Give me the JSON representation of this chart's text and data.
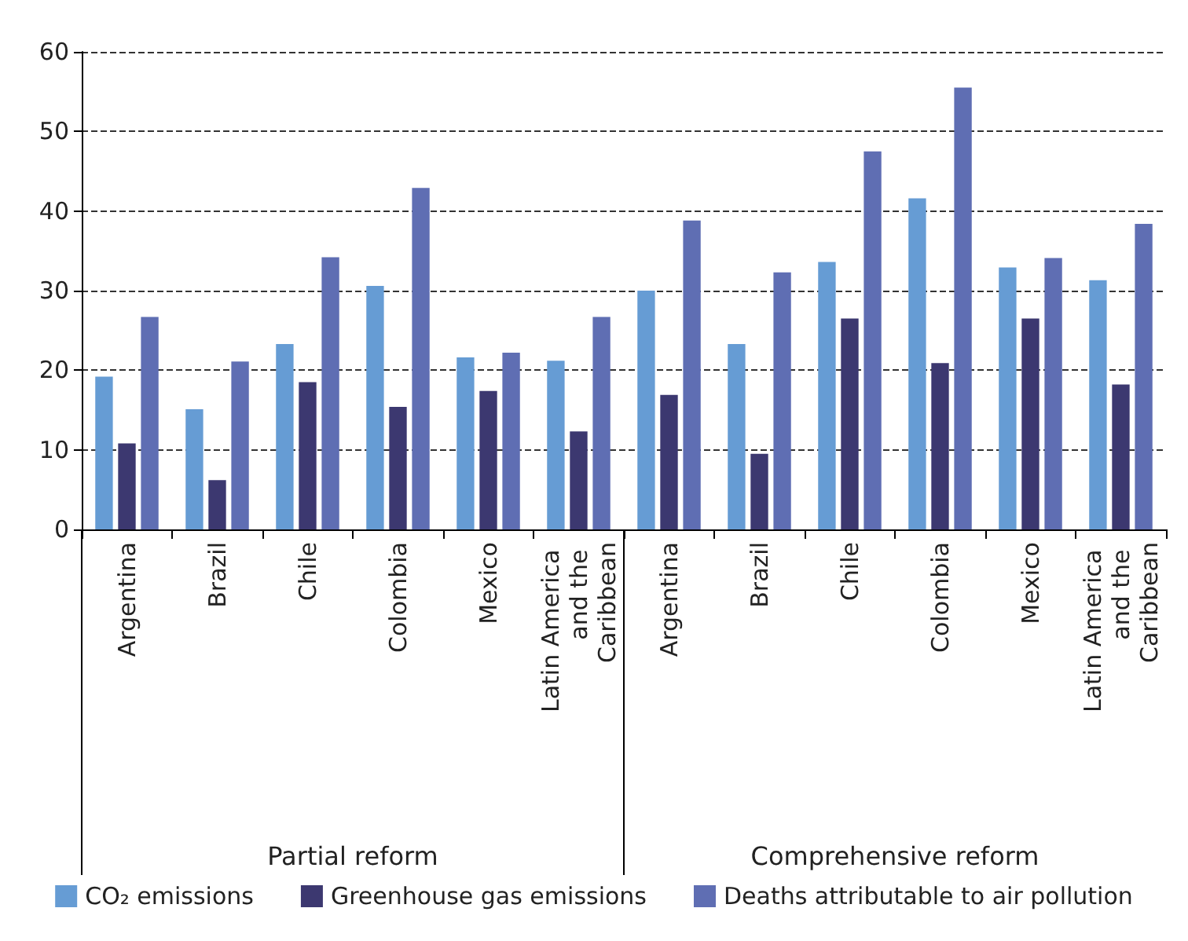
{
  "chart_data": {
    "type": "bar",
    "categories": [
      "Argentina",
      "Brazil",
      "Chile",
      "Colombia",
      "Mexico",
      "Latin America and the Caribbean",
      "Argentina",
      "Brazil",
      "Chile",
      "Colombia",
      "Mexico",
      "Latin America and the Caribbean"
    ],
    "series": [
      {
        "name": "CO₂ emissions",
        "color": "#669cd4",
        "values": [
          19.2,
          15.1,
          23.3,
          30.6,
          21.6,
          21.2,
          30.0,
          23.3,
          33.6,
          41.6,
          32.9,
          31.3
        ]
      },
      {
        "name": "Greenhouse gas emissions",
        "color": "#3c3870",
        "values": [
          10.8,
          6.2,
          18.5,
          15.4,
          17.4,
          12.3,
          16.9,
          9.5,
          26.5,
          20.9,
          26.5,
          18.2
        ]
      },
      {
        "name": "Deaths attributable to air pollution",
        "color": "#5f6eb3",
        "values": [
          26.7,
          21.1,
          34.2,
          42.9,
          22.2,
          26.7,
          38.8,
          32.3,
          47.5,
          55.5,
          34.1,
          38.4
        ]
      }
    ],
    "annotations": [
      "Partial reform",
      "Comprehensive reform"
    ],
    "ylim": [
      0,
      60
    ],
    "yticks": [
      0,
      10,
      20,
      30,
      40,
      50,
      60
    ],
    "grid": "y",
    "legend": "bottom"
  }
}
